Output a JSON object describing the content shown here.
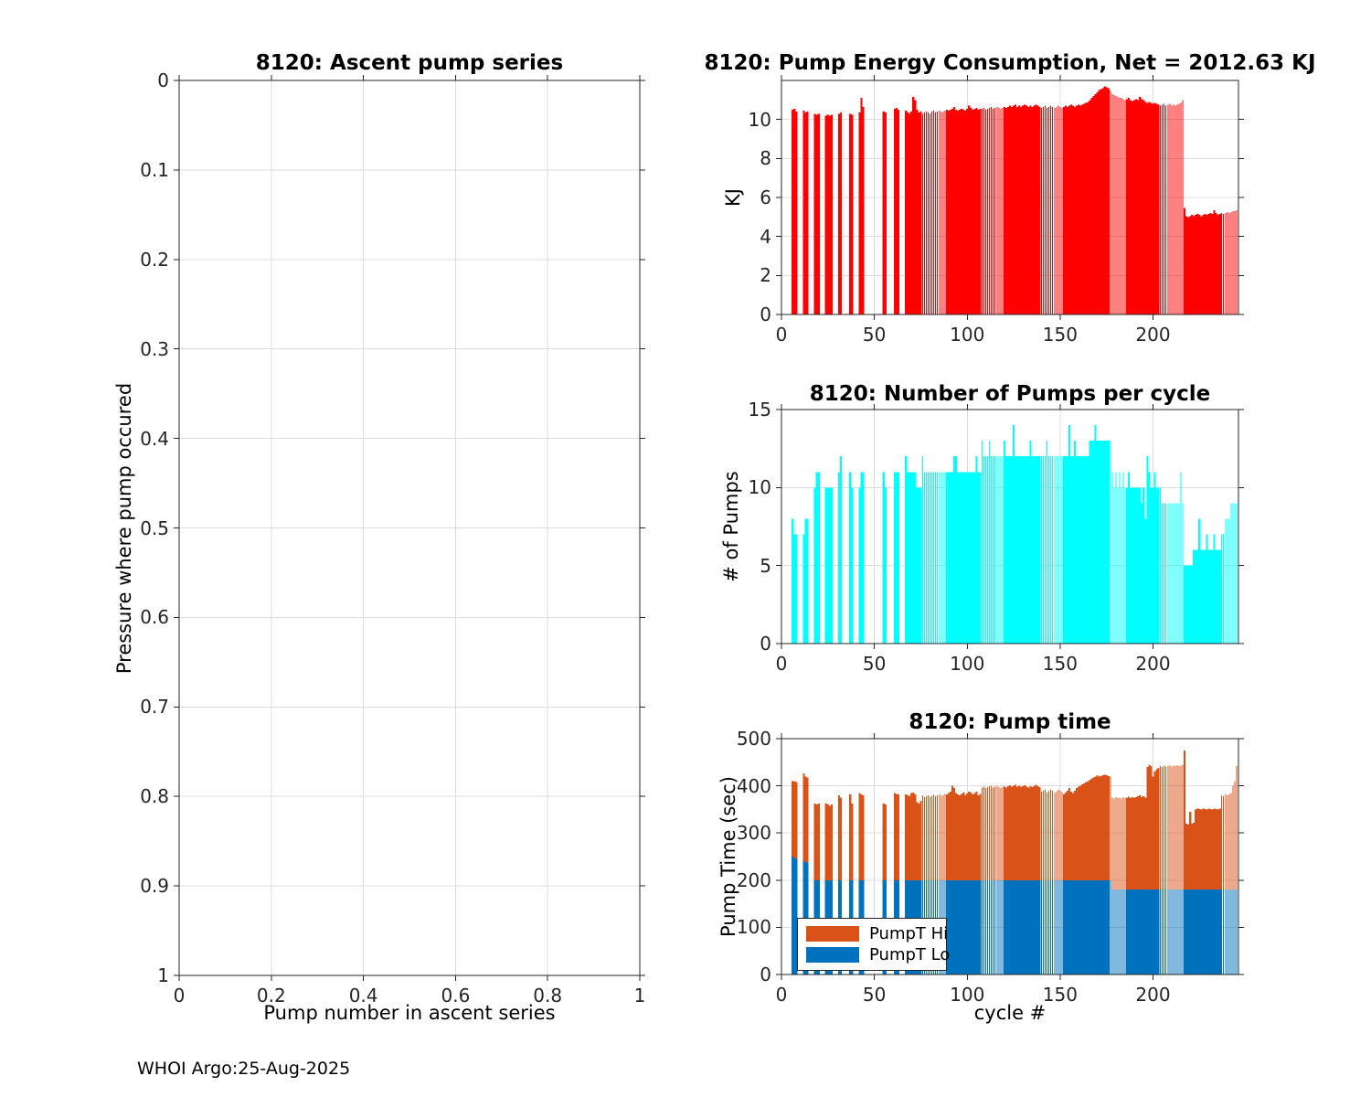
{
  "page": {
    "background": "#ffffff",
    "footer": "WHOI Argo:25-Aug-2025"
  },
  "style": {
    "grid_color": "#DCDCDC",
    "axis_color": "#262626"
  },
  "striped_cycle_ranges": [
    [
      76,
      88
    ],
    [
      108,
      119
    ],
    [
      140,
      151
    ],
    [
      177,
      185
    ],
    [
      204,
      216
    ],
    [
      237,
      245
    ]
  ],
  "chart_data": [
    {
      "id": "ascent",
      "type": "bar",
      "title": "8120: Ascent pump series",
      "xlabel": "Pump number in ascent series",
      "ylabel": "Pressure where pump occured",
      "xlim": [
        0,
        1
      ],
      "ylim": [
        0,
        1
      ],
      "y_reversed": true,
      "grid": true,
      "xticks": {
        "values": [
          0,
          0.2,
          0.4,
          0.6,
          0.8,
          1
        ],
        "labels": [
          "0",
          "0.2",
          "0.4",
          "0.6",
          "0.8",
          "1"
        ]
      },
      "yticks": {
        "values": [
          0,
          0.1,
          0.2,
          0.3,
          0.4,
          0.5,
          0.6,
          0.7,
          0.8,
          0.9,
          1
        ],
        "labels": [
          "0",
          "0.1",
          "0.2",
          "0.3",
          "0.4",
          "0.5",
          "0.6",
          "0.7",
          "0.8",
          "0.9",
          "1"
        ]
      },
      "values": []
    },
    {
      "id": "energy",
      "type": "bar",
      "title": "8120: Pump Energy Consumption,  Net = 2012.63 KJ",
      "net_kj": 2012.63,
      "xlabel": "",
      "ylabel": "KJ",
      "bar_color": "#FF0000",
      "xlim": [
        0,
        246
      ],
      "ylim": [
        0,
        12
      ],
      "grid": true,
      "xticks": {
        "values": [
          0,
          50,
          100,
          150,
          200
        ],
        "labels": [
          "0",
          "50",
          "100",
          "150",
          "200"
        ]
      },
      "yticks": {
        "values": [
          0,
          2,
          4,
          6,
          8,
          10
        ],
        "labels": [
          "0",
          "2",
          "4",
          "6",
          "8",
          "10"
        ]
      },
      "x_is_cycle": true,
      "values": [
        0,
        0,
        0,
        0,
        0,
        10.5,
        10.55,
        10.4,
        0,
        0,
        0,
        10.45,
        10.35,
        10.4,
        0,
        0,
        0,
        10.3,
        10.25,
        10.3,
        0,
        0,
        0,
        10.2,
        10.25,
        10.2,
        10.25,
        0,
        0,
        0,
        10.3,
        10.35,
        0,
        0,
        0,
        0,
        10.3,
        10.25,
        0,
        0,
        0,
        10.35,
        11.1,
        10.65,
        0,
        0,
        0,
        0,
        0,
        0,
        0,
        0,
        0,
        0,
        10.4,
        10.35,
        0,
        0,
        0,
        0,
        10.55,
        10.6,
        10.5,
        0,
        0,
        0,
        10.45,
        10.35,
        10.3,
        10.4,
        11.15,
        11.0,
        10.5,
        10.35,
        10.4,
        10.3,
        10.35,
        10.4,
        10.35,
        10.3,
        10.4,
        10.45,
        10.35,
        10.4,
        10.45,
        10.35,
        10.4,
        10.45,
        10.5,
        10.45,
        10.5,
        10.55,
        10.65,
        10.5,
        10.45,
        10.5,
        10.55,
        10.5,
        10.45,
        10.55,
        10.7,
        10.6,
        10.5,
        10.55,
        10.6,
        10.5,
        10.55,
        10.55,
        10.6,
        10.5,
        10.55,
        10.6,
        10.65,
        10.55,
        10.6,
        10.65,
        10.6,
        10.55,
        10.6,
        10.65,
        10.6,
        10.65,
        10.7,
        10.65,
        10.7,
        10.75,
        10.65,
        10.7,
        10.65,
        10.7,
        10.75,
        10.7,
        10.65,
        10.7,
        10.65,
        10.7,
        10.75,
        10.7,
        10.65,
        10.6,
        10.65,
        10.7,
        10.6,
        10.65,
        10.7,
        10.65,
        10.6,
        10.65,
        10.7,
        10.65,
        10.6,
        10.65,
        10.7,
        10.65,
        10.7,
        10.75,
        10.7,
        10.65,
        10.7,
        10.75,
        10.7,
        10.75,
        10.8,
        10.85,
        10.9,
        11.0,
        11.1,
        11.2,
        11.3,
        11.4,
        11.5,
        11.55,
        11.6,
        11.7,
        11.65,
        11.6,
        11.45,
        11.3,
        11.25,
        11.2,
        11.15,
        11.1,
        11.1,
        11.05,
        11.0,
        11.05,
        11.1,
        11.0,
        10.95,
        11.0,
        11.05,
        11.0,
        11.15,
        11.05,
        11.0,
        10.9,
        10.85,
        10.9,
        10.85,
        10.8,
        10.85,
        10.8,
        10.75,
        10.7,
        10.75,
        10.8,
        10.7,
        10.75,
        10.8,
        10.7,
        10.75,
        10.7,
        10.75,
        10.8,
        10.85,
        11.0,
        5.45,
        5.05,
        5.0,
        5.05,
        5.1,
        5.05,
        5.1,
        5.15,
        5.1,
        5.05,
        5.1,
        5.15,
        5.1,
        5.15,
        5.2,
        5.15,
        5.35,
        5.2,
        5.1,
        5.15,
        5.2,
        5.15,
        5.2,
        5.25,
        5.2,
        5.25,
        5.3,
        5.3,
        5.35
      ]
    },
    {
      "id": "pumps",
      "type": "bar",
      "title": "8120: Number of Pumps per cycle",
      "xlabel": "",
      "ylabel": "# of Pumps",
      "bar_color": "#00FFFF",
      "xlim": [
        0,
        246
      ],
      "ylim": [
        0,
        15
      ],
      "grid": true,
      "xticks": {
        "values": [
          0,
          50,
          100,
          150,
          200
        ],
        "labels": [
          "0",
          "50",
          "100",
          "150",
          "200"
        ]
      },
      "yticks": {
        "values": [
          0,
          5,
          10,
          15
        ],
        "labels": [
          "0",
          "5",
          "10",
          "15"
        ]
      },
      "x_is_cycle": true,
      "values": [
        0,
        0,
        0,
        0,
        0,
        8,
        7,
        7,
        0,
        0,
        0,
        7,
        8,
        8,
        0,
        0,
        0,
        10,
        11,
        11,
        0,
        0,
        0,
        10,
        10,
        10,
        10,
        0,
        0,
        0,
        11,
        12,
        0,
        0,
        0,
        0,
        11,
        10,
        0,
        0,
        0,
        10,
        11,
        11,
        0,
        0,
        0,
        0,
        0,
        0,
        0,
        0,
        0,
        0,
        11,
        10,
        0,
        0,
        0,
        0,
        11,
        11,
        11,
        0,
        0,
        0,
        12,
        11,
        11,
        11,
        11,
        11,
        10,
        10,
        10,
        12,
        11,
        11,
        11,
        11,
        11,
        11,
        11,
        11,
        11,
        11,
        11,
        11,
        11,
        11,
        11,
        11,
        12,
        12,
        11,
        11,
        11,
        11,
        11,
        11,
        11,
        11,
        11,
        11,
        12,
        11,
        11,
        13,
        12,
        12,
        12,
        13,
        12,
        12,
        12,
        12,
        12,
        12,
        12,
        13,
        12,
        12,
        12,
        12,
        14,
        12,
        12,
        12,
        12,
        12,
        12,
        12,
        12,
        13,
        12,
        12,
        12,
        12,
        12,
        12,
        12,
        12,
        13,
        12,
        12,
        12,
        12,
        12,
        12,
        12,
        12,
        12,
        12,
        12,
        14,
        12,
        12,
        13,
        12,
        12,
        12,
        12,
        12,
        12,
        12,
        13,
        13,
        13,
        14,
        13,
        13,
        13,
        13,
        13,
        13,
        13,
        13,
        11,
        10,
        11,
        10,
        11,
        10,
        11,
        10,
        10,
        11,
        10,
        10,
        10,
        10,
        10,
        10,
        9,
        10,
        8,
        12,
        11,
        10,
        10,
        11,
        10,
        10,
        10,
        9,
        9,
        9,
        9,
        9,
        9,
        9,
        9,
        9,
        9,
        11,
        9,
        5,
        5,
        5,
        5,
        5,
        6,
        6,
        6,
        8,
        6,
        6,
        6,
        7,
        6,
        6,
        6,
        7,
        6,
        6,
        6,
        7,
        7,
        8,
        8,
        8,
        9,
        9,
        9,
        9
      ]
    },
    {
      "id": "ptime",
      "type": "stacked-bar",
      "title": "8120: Pump time",
      "xlabel": "cycle #",
      "ylabel": "Pump Time (sec)",
      "xlim": [
        0,
        246
      ],
      "ylim": [
        0,
        500
      ],
      "grid": true,
      "xticks": {
        "values": [
          0,
          50,
          100,
          150,
          200
        ],
        "labels": [
          "0",
          "50",
          "100",
          "150",
          "200"
        ]
      },
      "yticks": {
        "values": [
          0,
          100,
          200,
          300,
          400,
          500
        ],
        "labels": [
          "0",
          "100",
          "200",
          "300",
          "400",
          "500"
        ]
      },
      "x_is_cycle": true,
      "legend": {
        "position": "southwest",
        "entries": [
          "PumpT Hi",
          "PumpT Lo"
        ]
      },
      "series": [
        {
          "name": "PumpT Hi",
          "color": "#D95319",
          "stack": "top",
          "values": [
            0,
            0,
            0,
            0,
            0,
            160,
            162,
            163,
            0,
            0,
            0,
            186,
            182,
            181,
            0,
            0,
            0,
            162,
            160,
            162,
            0,
            0,
            0,
            162,
            160,
            158,
            160,
            0,
            0,
            0,
            180,
            175,
            0,
            0,
            0,
            0,
            182,
            162,
            0,
            0,
            0,
            185,
            182,
            180,
            0,
            0,
            0,
            0,
            0,
            0,
            0,
            0,
            0,
            0,
            162,
            160,
            0,
            0,
            0,
            0,
            185,
            183,
            182,
            0,
            0,
            0,
            182,
            180,
            178,
            185,
            186,
            182,
            165,
            162,
            168,
            180,
            176,
            178,
            180,
            177,
            179,
            181,
            178,
            180,
            182,
            179,
            181,
            183,
            182,
            185,
            188,
            200,
            195,
            185,
            182,
            180,
            183,
            186,
            180,
            184,
            188,
            186,
            182,
            185,
            188,
            180,
            183,
            196,
            198,
            195,
            197,
            199,
            200,
            196,
            198,
            200,
            197,
            195,
            198,
            198,
            196,
            199,
            201,
            198,
            200,
            202,
            198,
            200,
            197,
            199,
            201,
            198,
            196,
            199,
            197,
            200,
            202,
            199,
            197,
            188,
            190,
            192,
            186,
            189,
            192,
            190,
            186,
            189,
            192,
            190,
            187,
            182,
            186,
            190,
            195,
            188,
            185,
            190,
            195,
            198,
            200,
            203,
            205,
            208,
            210,
            213,
            216,
            218,
            220,
            222,
            220,
            221,
            222,
            223,
            222,
            221,
            220,
            195,
            193,
            196,
            194,
            195,
            193,
            196,
            194,
            195,
            197,
            194,
            196,
            195,
            196,
            198,
            200,
            196,
            198,
            195,
            260,
            265,
            262,
            240,
            250,
            255,
            258,
            262,
            260,
            263,
            261,
            262,
            264,
            261,
            263,
            262,
            264,
            262,
            263,
            265,
            295,
            140,
            138,
            165,
            140,
            142,
            170,
            172,
            171,
            170,
            172,
            171,
            170,
            172,
            171,
            170,
            172,
            171,
            170,
            172,
            200,
            198,
            202,
            200,
            203,
            205,
            220,
            230,
            262
          ]
        },
        {
          "name": "PumpT Lo",
          "color": "#0072BD",
          "stack": "bottom",
          "values": [
            0,
            0,
            0,
            0,
            0,
            250,
            248,
            245,
            0,
            0,
            0,
            240,
            238,
            237,
            0,
            0,
            0,
            200,
            200,
            200,
            0,
            0,
            0,
            200,
            200,
            200,
            200,
            0,
            0,
            0,
            200,
            200,
            0,
            0,
            0,
            0,
            200,
            200,
            0,
            0,
            0,
            200,
            200,
            200,
            0,
            0,
            0,
            0,
            0,
            0,
            0,
            0,
            0,
            0,
            200,
            200,
            0,
            0,
            0,
            0,
            200,
            200,
            200,
            0,
            0,
            0,
            200,
            200,
            200,
            200,
            200,
            200,
            200,
            200,
            200,
            200,
            200,
            200,
            200,
            200,
            200,
            200,
            200,
            200,
            200,
            200,
            200,
            200,
            200,
            200,
            200,
            200,
            200,
            200,
            200,
            200,
            200,
            200,
            200,
            200,
            200,
            200,
            200,
            200,
            200,
            200,
            200,
            200,
            200,
            200,
            200,
            200,
            200,
            200,
            200,
            200,
            200,
            200,
            200,
            200,
            200,
            200,
            200,
            200,
            200,
            200,
            200,
            200,
            200,
            200,
            200,
            200,
            200,
            200,
            200,
            200,
            200,
            200,
            200,
            200,
            200,
            200,
            200,
            200,
            200,
            200,
            200,
            200,
            200,
            200,
            200,
            200,
            200,
            200,
            200,
            200,
            200,
            200,
            200,
            200,
            200,
            200,
            200,
            200,
            200,
            200,
            200,
            200,
            200,
            200,
            200,
            200,
            200,
            200,
            200,
            200,
            200,
            180,
            180,
            180,
            180,
            180,
            180,
            180,
            180,
            180,
            180,
            180,
            180,
            180,
            180,
            180,
            180,
            180,
            180,
            180,
            180,
            180,
            180,
            180,
            180,
            180,
            180,
            180,
            180,
            180,
            180,
            180,
            180,
            180,
            180,
            180,
            180,
            180,
            180,
            180,
            180,
            180,
            180,
            180,
            180,
            180,
            180,
            180,
            180,
            180,
            180,
            180,
            180,
            180,
            180,
            180,
            180,
            180,
            180,
            180,
            180,
            180,
            180,
            180,
            180,
            180,
            180,
            180,
            180
          ]
        }
      ]
    }
  ]
}
